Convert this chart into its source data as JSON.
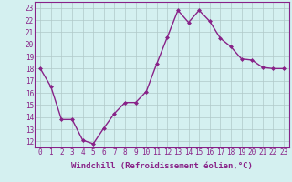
{
  "x": [
    0,
    1,
    2,
    3,
    4,
    5,
    6,
    7,
    8,
    9,
    10,
    11,
    12,
    13,
    14,
    15,
    16,
    17,
    18,
    19,
    20,
    21,
    22,
    23
  ],
  "y": [
    18,
    16.5,
    13.8,
    13.8,
    12.1,
    11.8,
    13.1,
    14.3,
    15.2,
    15.2,
    16.1,
    18.4,
    20.6,
    22.8,
    21.8,
    22.8,
    21.9,
    20.5,
    19.8,
    18.8,
    18.7,
    18.1,
    18.0,
    18.0
  ],
  "line_color": "#882288",
  "marker": "D",
  "marker_size": 2.0,
  "linewidth": 1.0,
  "xlabel": "Windchill (Refroidissement éolien,°C)",
  "xlabel_fontsize": 6.5,
  "bg_color": "#d4f0f0",
  "grid_color": "#b0c8c8",
  "yticks": [
    12,
    13,
    14,
    15,
    16,
    17,
    18,
    19,
    20,
    21,
    22,
    23
  ],
  "xticks": [
    0,
    1,
    2,
    3,
    4,
    5,
    6,
    7,
    8,
    9,
    10,
    11,
    12,
    13,
    14,
    15,
    16,
    17,
    18,
    19,
    20,
    21,
    22,
    23
  ],
  "ylim": [
    11.5,
    23.5
  ],
  "xlim": [
    -0.5,
    23.5
  ],
  "tick_fontsize": 5.5,
  "spine_color": "#882288"
}
